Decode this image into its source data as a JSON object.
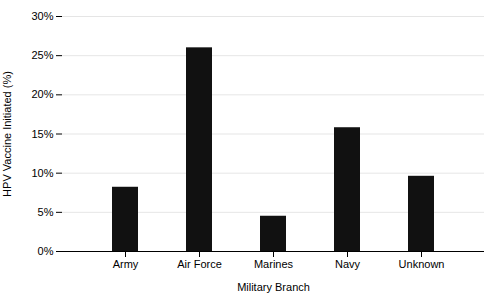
{
  "chart_data": {
    "type": "bar",
    "categories": [
      "Army",
      "Air Force",
      "Marines",
      "Navy",
      "Unknown"
    ],
    "values": [
      8.2,
      26.0,
      4.5,
      15.8,
      9.6
    ],
    "color": "#111111",
    "xlabel": "Military Branch",
    "ylabel": "HPV Vaccine Initiated (%)",
    "ylim": [
      0,
      30
    ],
    "yticks": [
      {
        "value": 0,
        "label": "0%"
      },
      {
        "value": 5,
        "label": "5%"
      },
      {
        "value": 10,
        "label": "10%"
      },
      {
        "value": 15,
        "label": "15%"
      },
      {
        "value": 20,
        "label": "20%"
      },
      {
        "value": 25,
        "label": "25%"
      },
      {
        "value": 30,
        "label": "30%"
      }
    ],
    "grid": true
  }
}
